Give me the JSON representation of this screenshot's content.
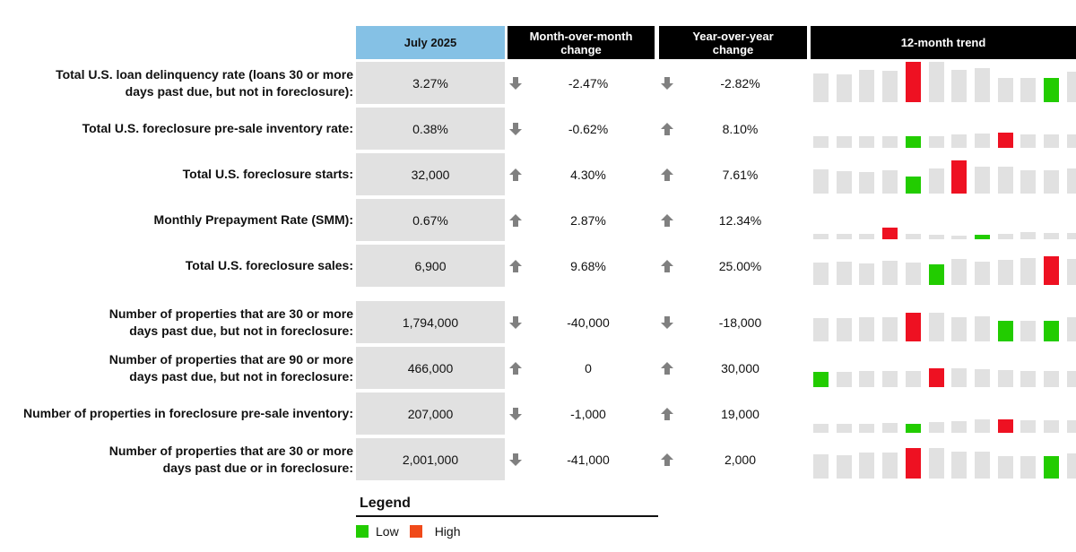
{
  "headers": {
    "current": "July 2025",
    "mom": "Month-over-month change",
    "yoy": "Year-over-year change",
    "trend": "12-month trend"
  },
  "colors": {
    "header_blue": "#85c1e5",
    "cell_gray": "#e1e1e1",
    "bar_gray": "#e1e1e1",
    "low_green": "#22cc00",
    "high_red": "#ee1122",
    "legend_high": "#f04a1a",
    "arrow_gray": "#808080"
  },
  "rows": [
    {
      "label_l1": "Total U.S. loan delinquency rate (loans 30 or more",
      "label_l2": "days past due, but not in foreclosure):",
      "value": "3.27%",
      "mom_dir": "down",
      "mom": "-2.47%",
      "yoy_dir": "down",
      "yoy": "-2.82%"
    },
    {
      "label_l1": "Total U.S. foreclosure pre-sale inventory rate:",
      "label_l2": "",
      "value": "0.38%",
      "mom_dir": "down",
      "mom": "-0.62%",
      "yoy_dir": "up",
      "yoy": "8.10%"
    },
    {
      "label_l1": "Total U.S. foreclosure starts:",
      "label_l2": "",
      "value": "32,000",
      "mom_dir": "up",
      "mom": "4.30%",
      "yoy_dir": "up",
      "yoy": "7.61%"
    },
    {
      "label_l1": "Monthly Prepayment Rate (SMM):",
      "label_l2": "",
      "value": "0.67%",
      "mom_dir": "up",
      "mom": "2.87%",
      "yoy_dir": "up",
      "yoy": "12.34%"
    },
    {
      "label_l1": "Total U.S. foreclosure sales:",
      "label_l2": "",
      "value": "6,900",
      "mom_dir": "up",
      "mom": "9.68%",
      "yoy_dir": "up",
      "yoy": "25.00%"
    },
    {
      "label_l1": "Number of properties that are 30 or more",
      "label_l2": "days past due, but not in foreclosure:",
      "value": "1,794,000",
      "mom_dir": "down",
      "mom": "-40,000",
      "yoy_dir": "down",
      "yoy": "-18,000"
    },
    {
      "label_l1": "Number of properties that are 90 or more",
      "label_l2": "days past due, but not in foreclosure:",
      "value": "466,000",
      "mom_dir": "up",
      "mom": "0",
      "yoy_dir": "up",
      "yoy": "30,000"
    },
    {
      "label_l1": "Number of properties in foreclosure pre-sale inventory:",
      "label_l2": "",
      "value": "207,000",
      "mom_dir": "down",
      "mom": "-1,000",
      "yoy_dir": "up",
      "yoy": "19,000"
    },
    {
      "label_l1": "Number of properties that are 30 or more",
      "label_l2": "days past due or in foreclosure:",
      "value": "2,001,000",
      "mom_dir": "down",
      "mom": "-41,000",
      "yoy_dir": "up",
      "yoy": "2,000"
    }
  ],
  "legend": {
    "title": "Legend",
    "low": "Low",
    "high": "High"
  },
  "chart_data": {
    "type": "bar",
    "title": "12-month trend",
    "description": "Sparkline bar charts per metric; relative bar heights in px; highlight: L=low (green), H=high (red)",
    "series": [
      {
        "name": "Total U.S. loan delinquency rate",
        "heights": [
          32,
          31,
          36,
          35,
          45,
          45,
          36,
          38,
          27,
          27,
          27,
          34
        ],
        "highlight": [
          null,
          null,
          null,
          null,
          "H",
          null,
          null,
          null,
          null,
          null,
          "L",
          null
        ]
      },
      {
        "name": "Total U.S. foreclosure pre-sale inventory rate",
        "heights": [
          13,
          13,
          13,
          13,
          13,
          13,
          15,
          16,
          17,
          15,
          15,
          15
        ],
        "highlight": [
          null,
          null,
          null,
          null,
          "L",
          null,
          null,
          null,
          "H",
          null,
          null,
          null
        ]
      },
      {
        "name": "Total U.S. foreclosure starts",
        "heights": [
          27,
          25,
          24,
          26,
          19,
          28,
          37,
          30,
          30,
          26,
          26,
          28
        ],
        "highlight": [
          null,
          null,
          null,
          null,
          "L",
          null,
          "H",
          null,
          null,
          null,
          null,
          null
        ]
      },
      {
        "name": "Monthly Prepayment Rate (SMM)",
        "heights": [
          6,
          6,
          6,
          13,
          6,
          5,
          4,
          5,
          6,
          8,
          7,
          7
        ],
        "highlight": [
          null,
          null,
          null,
          "H",
          null,
          null,
          null,
          "L",
          null,
          null,
          null,
          null
        ]
      },
      {
        "name": "Total U.S. foreclosure sales",
        "heights": [
          25,
          26,
          24,
          27,
          25,
          23,
          29,
          26,
          28,
          30,
          32,
          29
        ],
        "highlight": [
          null,
          null,
          null,
          null,
          null,
          "L",
          null,
          null,
          null,
          null,
          "H",
          null
        ]
      },
      {
        "name": "Number of properties 30+ days past due",
        "heights": [
          26,
          26,
          27,
          27,
          32,
          32,
          27,
          28,
          23,
          23,
          23,
          27
        ],
        "highlight": [
          null,
          null,
          null,
          null,
          "H",
          null,
          null,
          null,
          "L",
          null,
          "L",
          null
        ]
      },
      {
        "name": "Number of properties 90+ days past due",
        "heights": [
          17,
          17,
          18,
          18,
          18,
          21,
          21,
          20,
          19,
          18,
          18,
          18
        ],
        "highlight": [
          "L",
          null,
          null,
          null,
          null,
          "H",
          null,
          null,
          null,
          null,
          null,
          null
        ]
      },
      {
        "name": "Number of properties in foreclosure pre-sale inventory",
        "heights": [
          10,
          10,
          10,
          11,
          10,
          12,
          13,
          15,
          15,
          14,
          14,
          14
        ],
        "highlight": [
          null,
          null,
          null,
          null,
          "L",
          null,
          null,
          null,
          "H",
          null,
          null,
          null
        ]
      },
      {
        "name": "Number of properties 30+ days past due or in foreclosure",
        "heights": [
          27,
          26,
          29,
          29,
          34,
          34,
          30,
          30,
          25,
          25,
          25,
          28
        ],
        "highlight": [
          null,
          null,
          null,
          null,
          "H",
          null,
          null,
          null,
          null,
          null,
          "L",
          null
        ]
      }
    ],
    "legend": [
      "Low",
      "High"
    ]
  }
}
